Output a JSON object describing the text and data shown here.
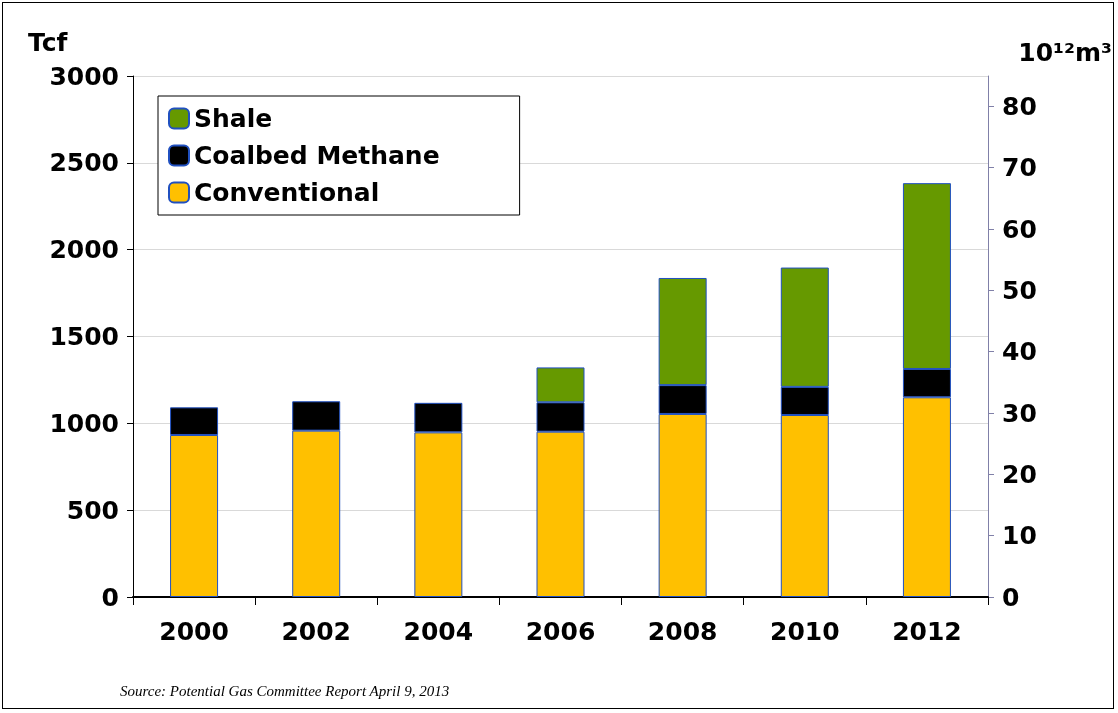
{
  "chart_data": {
    "type": "bar",
    "stacked": true,
    "ylabel": "Tcf",
    "y2label": "10¹²m³",
    "categories": [
      "2000",
      "2002",
      "2004",
      "2006",
      "2008",
      "2010",
      "2012"
    ],
    "series": [
      {
        "name": "Conventional",
        "color": "#ffc000",
        "values": [
          933,
          958,
          948,
          952,
          1054,
          1048,
          1150
        ]
      },
      {
        "name": "Coalbed Methane",
        "color": "#000000",
        "values": [
          159,
          169,
          170,
          169,
          166,
          162,
          163
        ]
      },
      {
        "name": "Shale",
        "color": "#669900",
        "values": [
          null,
          null,
          null,
          201,
          617,
          687,
          1070
        ]
      }
    ],
    "ylim": [
      0,
      3000
    ],
    "yticks": [
      0,
      500,
      1000,
      1500,
      2000,
      2500,
      3000
    ],
    "y2lim": [
      0,
      84.95
    ],
    "y2ticks": [
      0,
      10,
      20,
      30,
      40,
      50,
      60,
      70,
      80
    ],
    "grid": "y",
    "legend": "top left",
    "annotations": [
      "Source: Potential Gas Committee Report April 9, 2013"
    ]
  }
}
